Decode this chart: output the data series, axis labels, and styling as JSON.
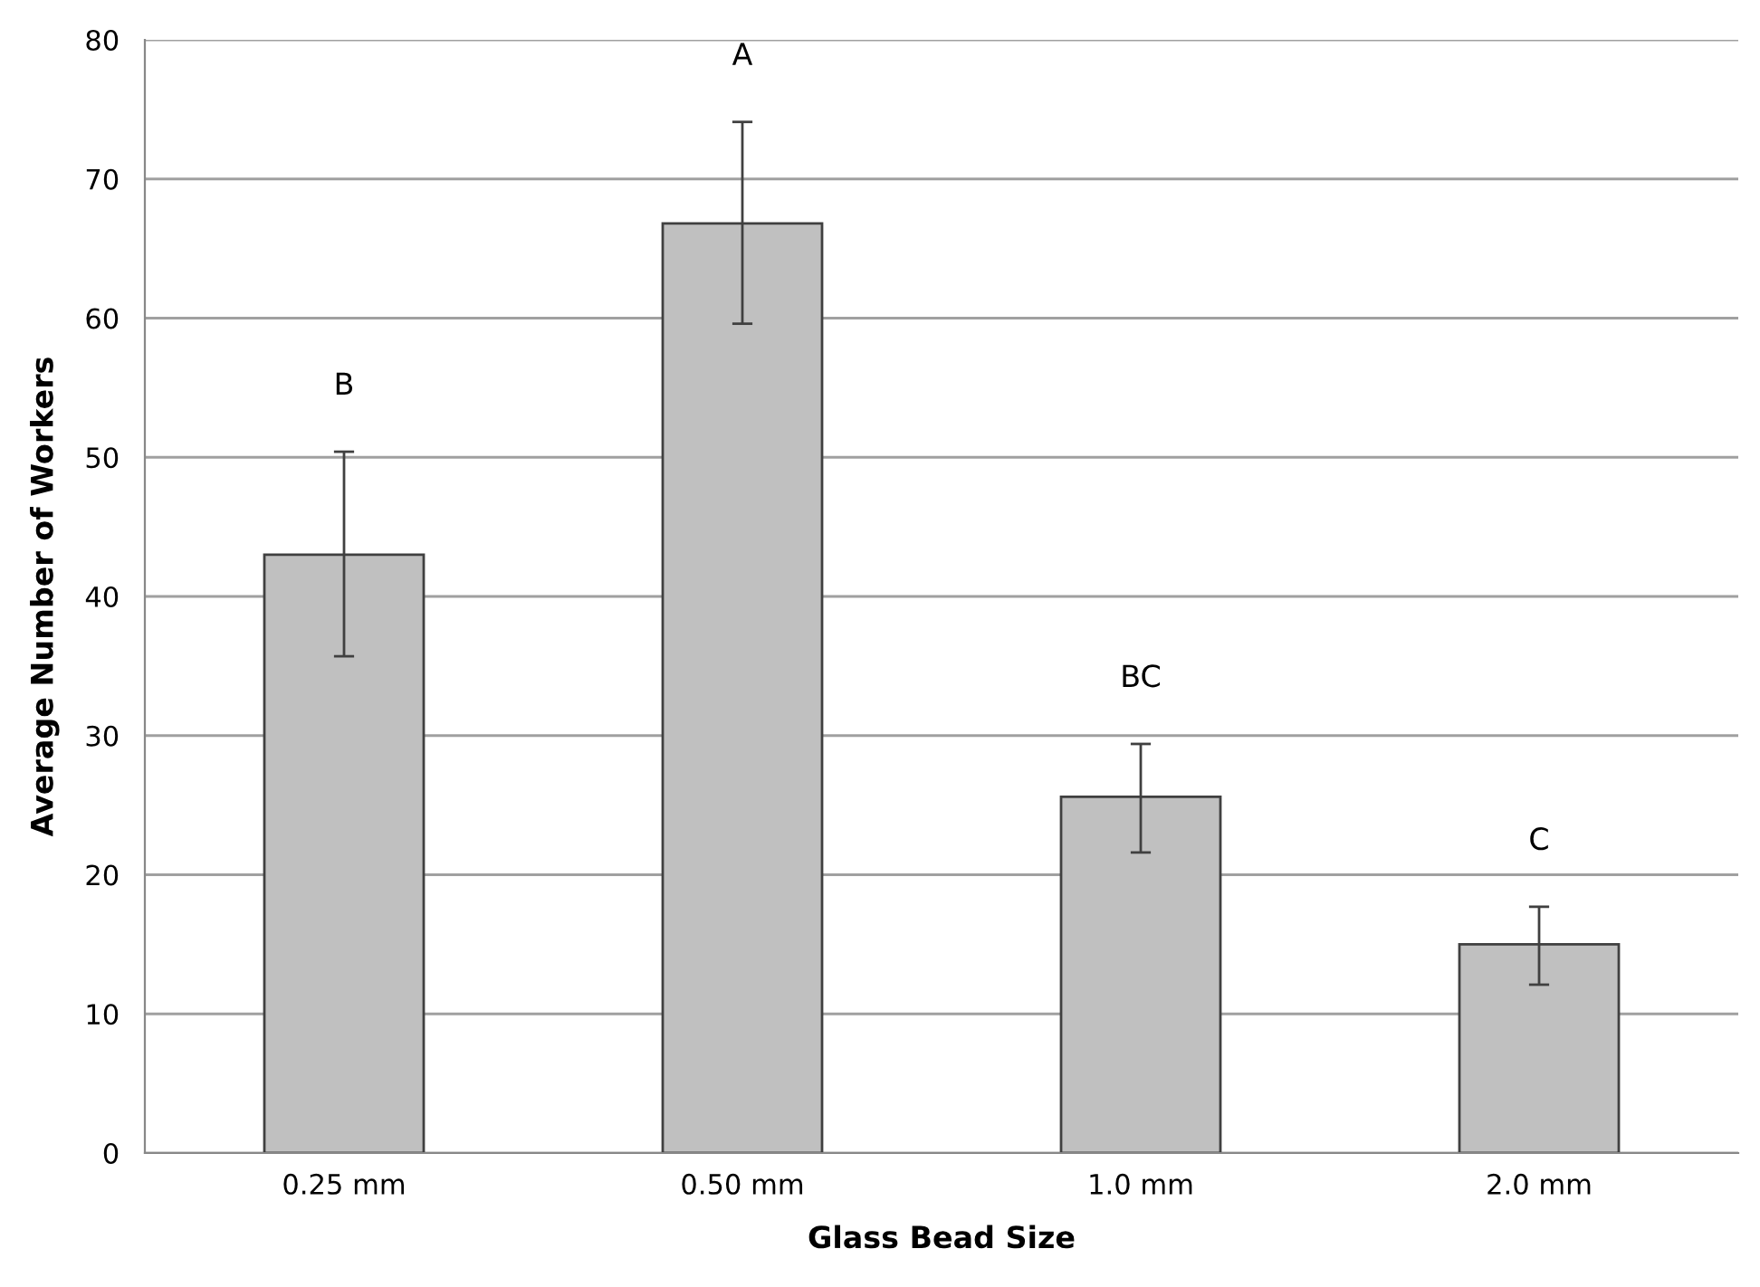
{
  "chart_data": {
    "type": "bar",
    "xlabel": "Glass Bead Size",
    "ylabel": "Average Number of Workers",
    "categories": [
      "0.25 mm",
      "0.50 mm",
      "1.0 mm",
      "2.0 mm"
    ],
    "values": [
      43.0,
      66.8,
      25.6,
      15.0
    ],
    "errors": [
      [
        35.7,
        50.4
      ],
      [
        59.6,
        74.1
      ],
      [
        21.6,
        29.4
      ],
      [
        12.1,
        17.7
      ]
    ],
    "color": "#c0c0c0",
    "ylim": [
      0,
      80
    ],
    "yticks": [
      0,
      10,
      20,
      30,
      40,
      50,
      60,
      70,
      80
    ],
    "grid": "y",
    "annotations": [
      "B",
      "A",
      "BC",
      "C"
    ]
  }
}
